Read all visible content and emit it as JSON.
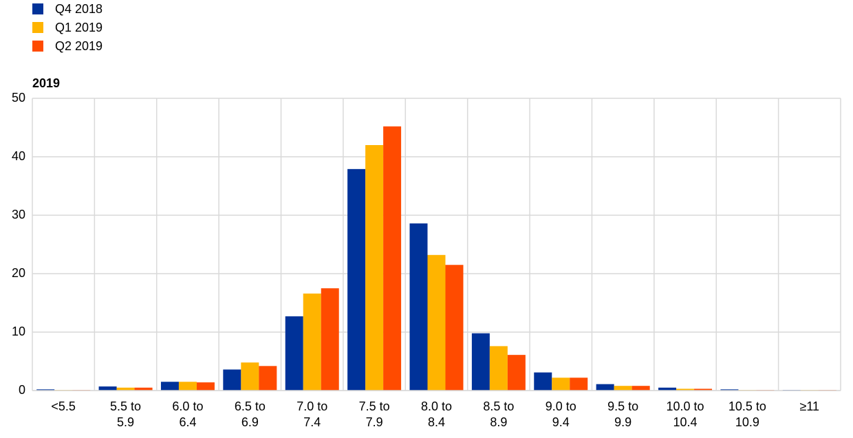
{
  "chart_data": {
    "type": "bar",
    "title": "2019",
    "categories": [
      "<5.5",
      "5.5 to 5.9",
      "6.0 to 6.4",
      "6.5 to 6.9",
      "7.0 to 7.4",
      "7.5 to 7.9",
      "8.0 to 8.4",
      "8.5 to 8.9",
      "9.0 to 9.4",
      "9.5 to 9.9",
      "10.0 to 10.4",
      "10.5 to 10.9",
      "≥11"
    ],
    "series": [
      {
        "name": "Q4 2018",
        "color": "#003299",
        "values": [
          0.2,
          0.7,
          1.5,
          3.6,
          12.7,
          37.9,
          28.6,
          9.8,
          3.1,
          1.1,
          0.5,
          0.2,
          0.1
        ]
      },
      {
        "name": "Q1 2019",
        "color": "#ffb400",
        "values": [
          0.1,
          0.5,
          1.5,
          4.8,
          16.6,
          42.0,
          23.2,
          7.6,
          2.2,
          0.8,
          0.3,
          0.1,
          0.1
        ]
      },
      {
        "name": "Q2 2019",
        "color": "#ff4b00",
        "values": [
          0.1,
          0.5,
          1.4,
          4.2,
          17.5,
          45.2,
          21.5,
          6.1,
          2.2,
          0.8,
          0.3,
          0.1,
          0.1
        ]
      }
    ],
    "ylim": [
      0,
      50
    ],
    "yticks": [
      0,
      10,
      20,
      30,
      40,
      50
    ],
    "grid": true,
    "legend": "top-left"
  }
}
